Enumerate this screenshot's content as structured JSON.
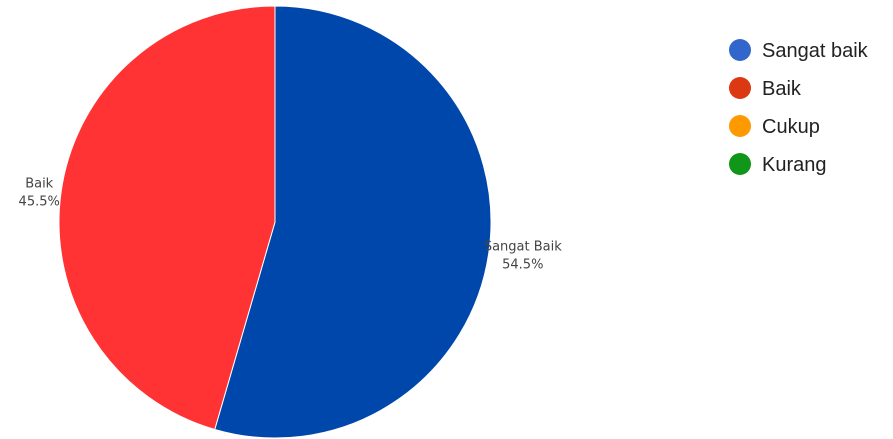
{
  "chart_data": {
    "type": "pie",
    "title": "",
    "legend_position": "right",
    "slices": [
      {
        "label": "Sangat Baik",
        "value": 54.5,
        "percent_label": "54.5%",
        "color": "#0047AB"
      },
      {
        "label": "Baik",
        "value": 45.5,
        "percent_label": "45.5%",
        "color": "#FF3333"
      }
    ],
    "legend": [
      {
        "label": "Sangat baik",
        "color": "#3366CC"
      },
      {
        "label": "Baik",
        "color": "#DC3912"
      },
      {
        "label": "Cukup",
        "color": "#FF9900"
      },
      {
        "label": "Kurang",
        "color": "#109618"
      }
    ]
  }
}
